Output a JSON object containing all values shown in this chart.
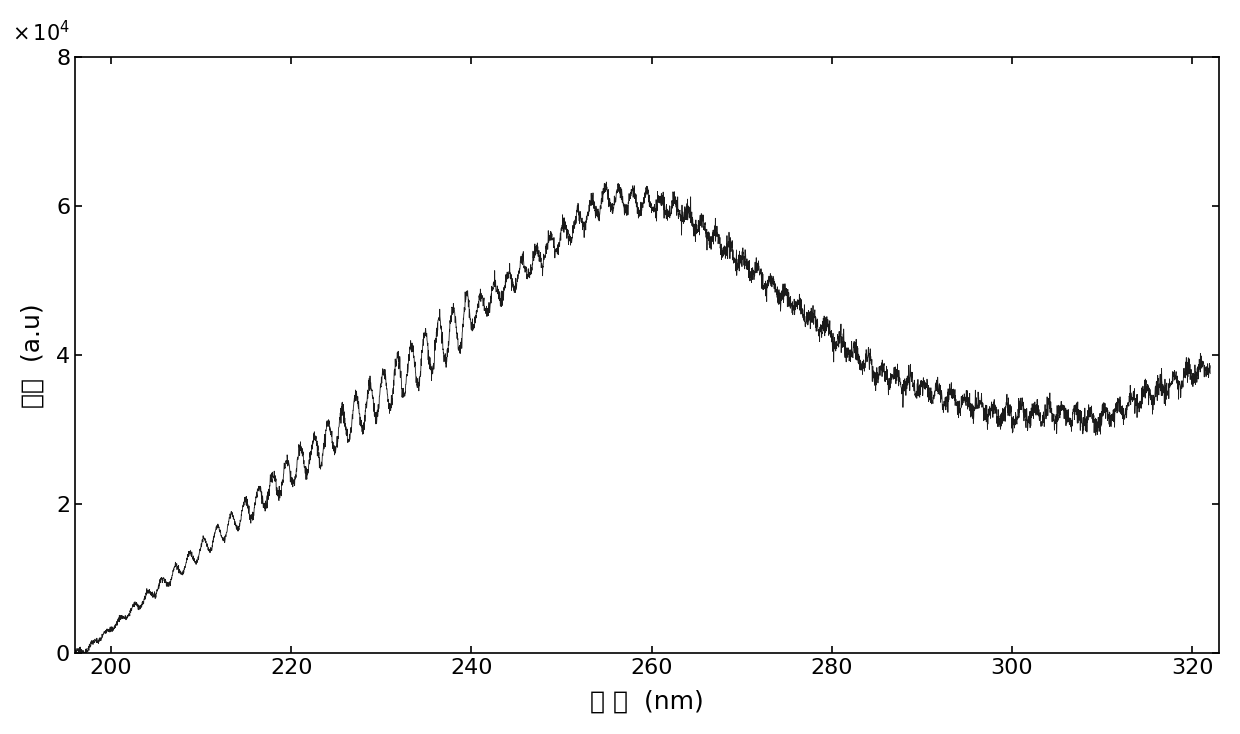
{
  "x_start": 196,
  "x_end": 322,
  "x_ticks": [
    200,
    220,
    240,
    260,
    280,
    300,
    320
  ],
  "y_ticks": [
    0,
    2,
    4,
    6,
    8
  ],
  "y_scale": 10000,
  "ylabel": "光强  (a.u)",
  "xlabel": "波 长  (nm)",
  "line_color": "#1a1a1a",
  "background_color": "#ffffff",
  "ylim": [
    0,
    80000
  ],
  "xlim": [
    196,
    323
  ]
}
